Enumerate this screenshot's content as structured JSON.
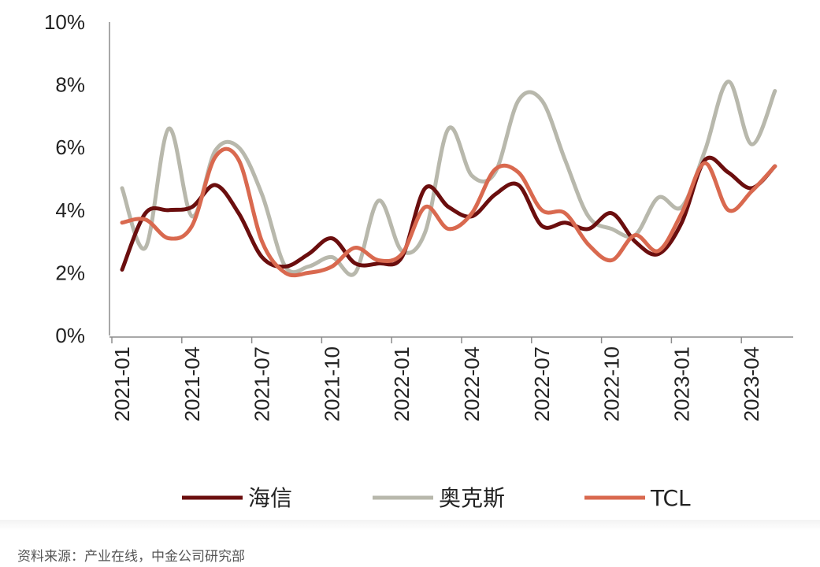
{
  "chart_data": {
    "type": "line",
    "y_ticks": [
      "0%",
      "2%",
      "4%",
      "6%",
      "8%",
      "10%"
    ],
    "ylim": [
      0,
      10
    ],
    "x_tick_labels": [
      "2021-01",
      "2021-04",
      "2021-07",
      "2021-10",
      "2022-01",
      "2022-04",
      "2022-07",
      "2022-10",
      "2023-01",
      "2023-04"
    ],
    "x_months": [
      "2021-01",
      "2021-02",
      "2021-03",
      "2021-04",
      "2021-05",
      "2021-06",
      "2021-07",
      "2021-08",
      "2021-09",
      "2021-10",
      "2021-11",
      "2021-12",
      "2022-01",
      "2022-02",
      "2022-03",
      "2022-04",
      "2022-05",
      "2022-06",
      "2022-07",
      "2022-08",
      "2022-09",
      "2022-10",
      "2022-11",
      "2022-12",
      "2023-01",
      "2023-02",
      "2023-03",
      "2023-04",
      "2023-05"
    ],
    "legend_position": "bottom",
    "grid": false,
    "series": [
      {
        "name": "海信",
        "color": "#6b0e0e",
        "values": [
          2.1,
          3.9,
          4.0,
          4.1,
          4.8,
          3.9,
          2.5,
          2.2,
          2.6,
          3.1,
          2.3,
          2.3,
          2.5,
          4.7,
          4.1,
          3.8,
          4.5,
          4.8,
          3.5,
          3.6,
          3.4,
          3.9,
          3.0,
          2.6,
          3.6,
          5.6,
          5.2,
          4.7,
          5.4
        ]
      },
      {
        "name": "奥克斯",
        "color": "#b8b8ac",
        "values": [
          4.7,
          2.8,
          6.6,
          3.8,
          5.9,
          6.0,
          4.5,
          2.2,
          2.2,
          2.5,
          2.0,
          4.3,
          2.7,
          3.3,
          6.6,
          5.1,
          5.2,
          7.5,
          7.5,
          5.6,
          3.8,
          3.4,
          3.2,
          4.4,
          4.1,
          5.9,
          8.1,
          6.1,
          7.8
        ]
      },
      {
        "name": "TCL",
        "color": "#d9694f",
        "values": [
          3.6,
          3.7,
          3.1,
          3.5,
          5.7,
          5.6,
          3.0,
          2.0,
          2.0,
          2.2,
          2.8,
          2.4,
          2.6,
          4.1,
          3.4,
          3.9,
          5.3,
          5.2,
          4.0,
          3.9,
          2.9,
          2.4,
          3.2,
          2.7,
          3.9,
          5.5,
          4.0,
          4.6,
          5.4
        ]
      }
    ]
  },
  "source_text": "资料来源：产业在线，中金公司研究部"
}
